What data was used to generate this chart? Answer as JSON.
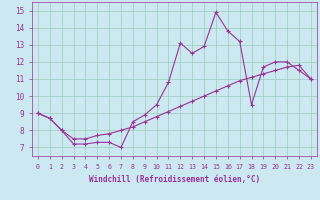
{
  "xlabel": "Windchill (Refroidissement éolien,°C)",
  "x_data": [
    0,
    1,
    2,
    3,
    4,
    5,
    6,
    7,
    8,
    9,
    10,
    11,
    12,
    13,
    14,
    15,
    16,
    17,
    18,
    19,
    20,
    21,
    22,
    23
  ],
  "y_upper": [
    9.0,
    8.7,
    8.0,
    7.2,
    7.2,
    7.3,
    7.3,
    7.0,
    8.5,
    8.9,
    9.5,
    10.8,
    13.1,
    12.5,
    12.9,
    14.9,
    13.8,
    13.2,
    9.5,
    11.7,
    12.0,
    12.0,
    11.5,
    11.0
  ],
  "y_lower": [
    9.0,
    8.7,
    8.0,
    7.5,
    7.5,
    7.7,
    7.8,
    8.0,
    8.2,
    8.5,
    8.8,
    9.1,
    9.4,
    9.7,
    10.0,
    10.3,
    10.6,
    10.9,
    11.1,
    11.3,
    11.5,
    11.7,
    11.8,
    11.0
  ],
  "line_color": "#993399",
  "bg_color": "#cce8f0",
  "grid_color": "#99ccbb",
  "tick_color": "#993399",
  "label_color": "#993399",
  "ylim": [
    6.5,
    15.5
  ],
  "xlim": [
    -0.5,
    23.5
  ],
  "yticks": [
    7,
    8,
    9,
    10,
    11,
    12,
    13,
    14,
    15
  ],
  "xticks": [
    0,
    1,
    2,
    3,
    4,
    5,
    6,
    7,
    8,
    9,
    10,
    11,
    12,
    13,
    14,
    15,
    16,
    17,
    18,
    19,
    20,
    21,
    22,
    23
  ],
  "xlabel_fontsize": 5.5,
  "tick_fontsize": 5.5,
  "xtick_fontsize": 4.8
}
